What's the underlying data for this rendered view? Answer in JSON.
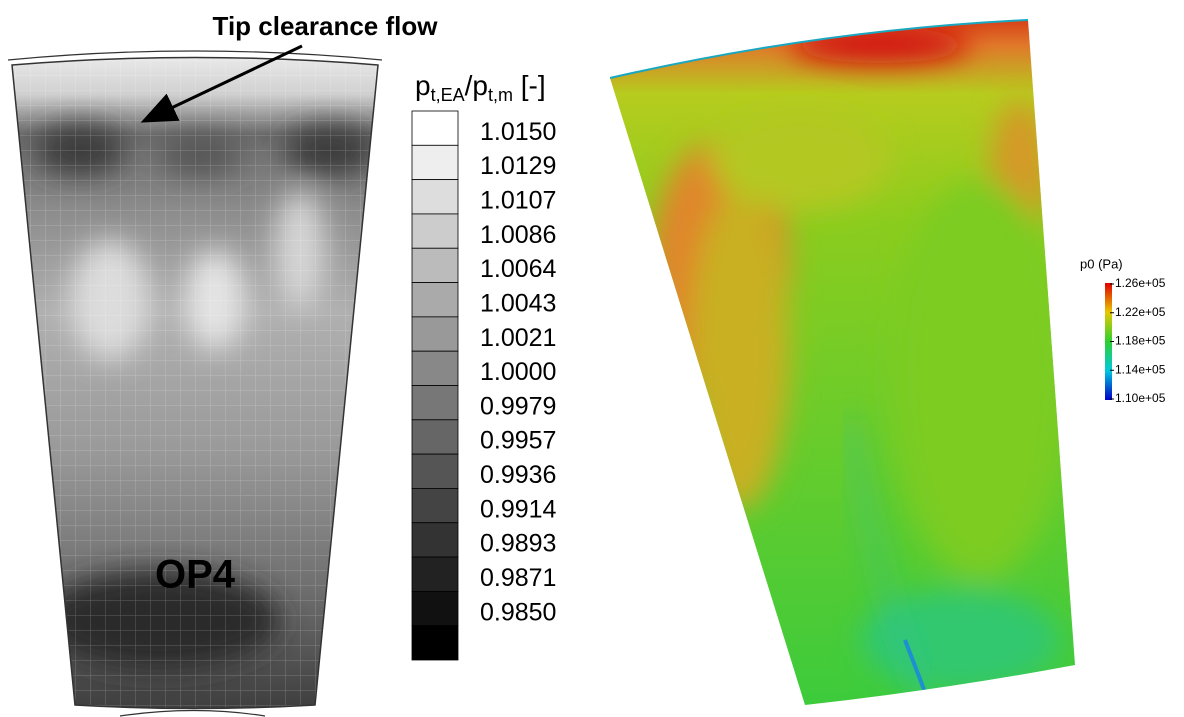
{
  "left_panel": {
    "annotation": "Tip clearance flow",
    "label": "OP4",
    "colorbar": {
      "title": {
        "base1": "p",
        "sub1": "t,EA",
        "base2": "/p",
        "sub2": "t,m",
        "unit": " [-]"
      },
      "levels": [
        "1.0150",
        "1.0129",
        "1.0107",
        "1.0086",
        "1.0064",
        "1.0043",
        "1.0021",
        "1.0000",
        "0.9979",
        "0.9957",
        "0.9936",
        "0.9914",
        "0.9893",
        "0.9871",
        "0.9850"
      ]
    }
  },
  "right_panel": {
    "colorbar": {
      "title": "p0 (Pa)",
      "ticks": [
        "1.26e+05",
        "1.22e+05",
        "1.18e+05",
        "1.14e+05",
        "1.10e+05"
      ]
    }
  }
}
